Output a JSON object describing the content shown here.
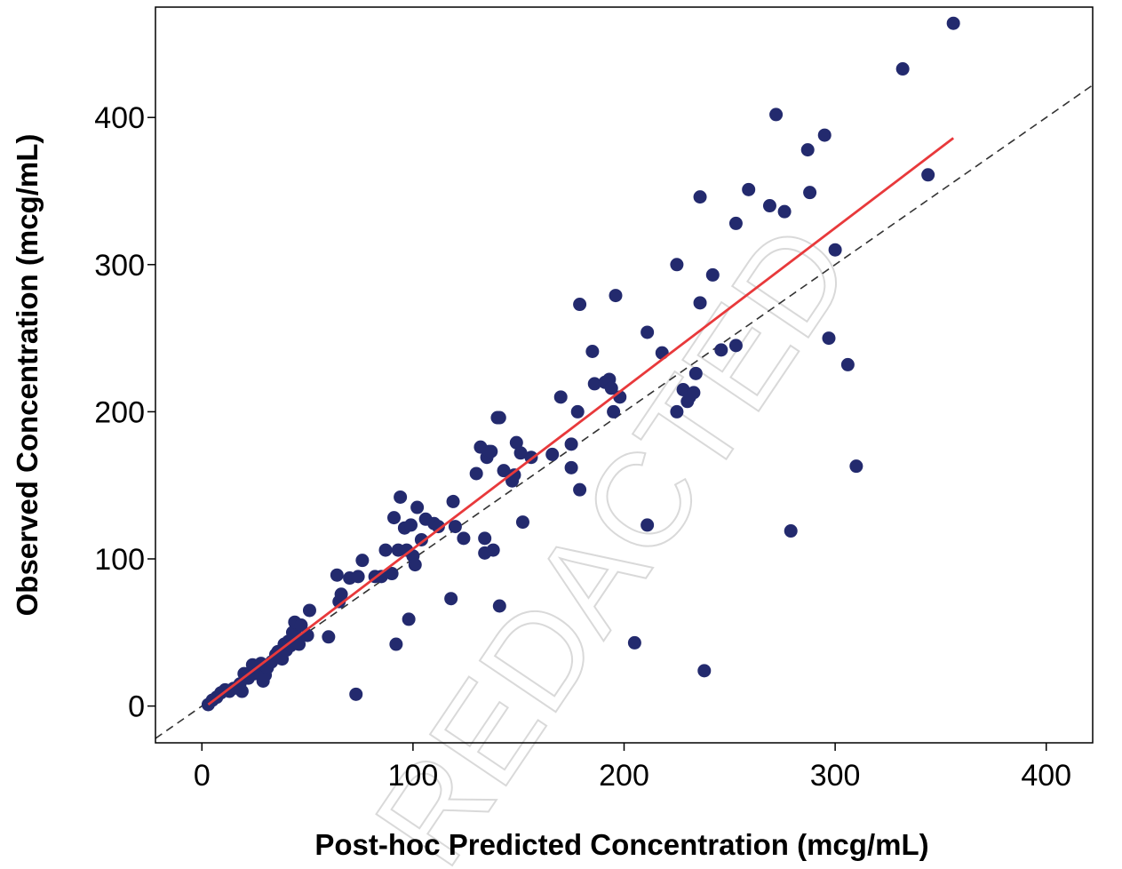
{
  "chart_data": {
    "type": "scatter",
    "title": "",
    "xlabel": "Post-hoc Predicted Concentration (mcg/mL)",
    "ylabel": "Observed Concentration (mcg/mL)",
    "xlim": [
      -22,
      422
    ],
    "ylim": [
      -25,
      475
    ],
    "x_ticks": [
      0,
      100,
      200,
      300,
      400
    ],
    "y_ticks": [
      0,
      100,
      200,
      300,
      400
    ],
    "grid": false,
    "legend": "none",
    "watermark": "REDACTED",
    "colors": {
      "points": "#232a6e",
      "fit_line": "#e8393b",
      "identity_line": "#333333",
      "watermark": "#d9d9d9"
    },
    "identity_line": {
      "x": [
        -22,
        422
      ],
      "y": [
        -22,
        422
      ]
    },
    "fit_line": {
      "x": [
        3,
        356
      ],
      "y": [
        1,
        386
      ]
    },
    "series": [
      {
        "points": [
          [
            3,
            1
          ],
          [
            5,
            4
          ],
          [
            7,
            6
          ],
          [
            9,
            9
          ],
          [
            11,
            11
          ],
          [
            13,
            10
          ],
          [
            15,
            12
          ],
          [
            18,
            15
          ],
          [
            19,
            10
          ],
          [
            20,
            22
          ],
          [
            22,
            19
          ],
          [
            24,
            28
          ],
          [
            25,
            22
          ],
          [
            27,
            25
          ],
          [
            28,
            29
          ],
          [
            29,
            17
          ],
          [
            30,
            21
          ],
          [
            31,
            26
          ],
          [
            33,
            30
          ],
          [
            35,
            35
          ],
          [
            36,
            37
          ],
          [
            38,
            32
          ],
          [
            39,
            42
          ],
          [
            40,
            38
          ],
          [
            41,
            44
          ],
          [
            42,
            41
          ],
          [
            43,
            50
          ],
          [
            44,
            57
          ],
          [
            45,
            47
          ],
          [
            46,
            42
          ],
          [
            47,
            55
          ],
          [
            50,
            48
          ],
          [
            51,
            65
          ],
          [
            60,
            47
          ],
          [
            64,
            89
          ],
          [
            65,
            71
          ],
          [
            66,
            76
          ],
          [
            70,
            87
          ],
          [
            73,
            8
          ],
          [
            74,
            88
          ],
          [
            76,
            99
          ],
          [
            82,
            88
          ],
          [
            85,
            88
          ],
          [
            87,
            106
          ],
          [
            90,
            90
          ],
          [
            91,
            128
          ],
          [
            92,
            42
          ],
          [
            93,
            106
          ],
          [
            94,
            142
          ],
          [
            96,
            121
          ],
          [
            97,
            106
          ],
          [
            98,
            59
          ],
          [
            99,
            123
          ],
          [
            100,
            102
          ],
          [
            101,
            96
          ],
          [
            102,
            135
          ],
          [
            104,
            113
          ],
          [
            106,
            127
          ],
          [
            110,
            124
          ],
          [
            112,
            122
          ],
          [
            118,
            73
          ],
          [
            119,
            139
          ],
          [
            120,
            122
          ],
          [
            124,
            114
          ],
          [
            130,
            158
          ],
          [
            132,
            176
          ],
          [
            134,
            104
          ],
          [
            134,
            114
          ],
          [
            135,
            169
          ],
          [
            136,
            173
          ],
          [
            137,
            173
          ],
          [
            138,
            106
          ],
          [
            140,
            196
          ],
          [
            141,
            196
          ],
          [
            141,
            68
          ],
          [
            143,
            160
          ],
          [
            147,
            153
          ],
          [
            148,
            157
          ],
          [
            149,
            179
          ],
          [
            151,
            172
          ],
          [
            152,
            125
          ],
          [
            156,
            169
          ],
          [
            166,
            171
          ],
          [
            170,
            210
          ],
          [
            175,
            178
          ],
          [
            175,
            162
          ],
          [
            178,
            200
          ],
          [
            179,
            273
          ],
          [
            179,
            147
          ],
          [
            185,
            241
          ],
          [
            186,
            219
          ],
          [
            191,
            220
          ],
          [
            193,
            222
          ],
          [
            194,
            216
          ],
          [
            195,
            200
          ],
          [
            196,
            279
          ],
          [
            198,
            210
          ],
          [
            205,
            43
          ],
          [
            211,
            254
          ],
          [
            211,
            123
          ],
          [
            218,
            240
          ],
          [
            225,
            200
          ],
          [
            225,
            300
          ],
          [
            228,
            215
          ],
          [
            230,
            207
          ],
          [
            231,
            210
          ],
          [
            233,
            213
          ],
          [
            234,
            226
          ],
          [
            236,
            274
          ],
          [
            236,
            346
          ],
          [
            238,
            24
          ],
          [
            242,
            293
          ],
          [
            246,
            242
          ],
          [
            253,
            245
          ],
          [
            253,
            328
          ],
          [
            259,
            351
          ],
          [
            269,
            340
          ],
          [
            272,
            402
          ],
          [
            276,
            336
          ],
          [
            279,
            119
          ],
          [
            287,
            378
          ],
          [
            288,
            349
          ],
          [
            295,
            388
          ],
          [
            297,
            250
          ],
          [
            300,
            310
          ],
          [
            306,
            232
          ],
          [
            310,
            163
          ],
          [
            332,
            433
          ],
          [
            344,
            361
          ],
          [
            356,
            464
          ]
        ]
      }
    ]
  }
}
